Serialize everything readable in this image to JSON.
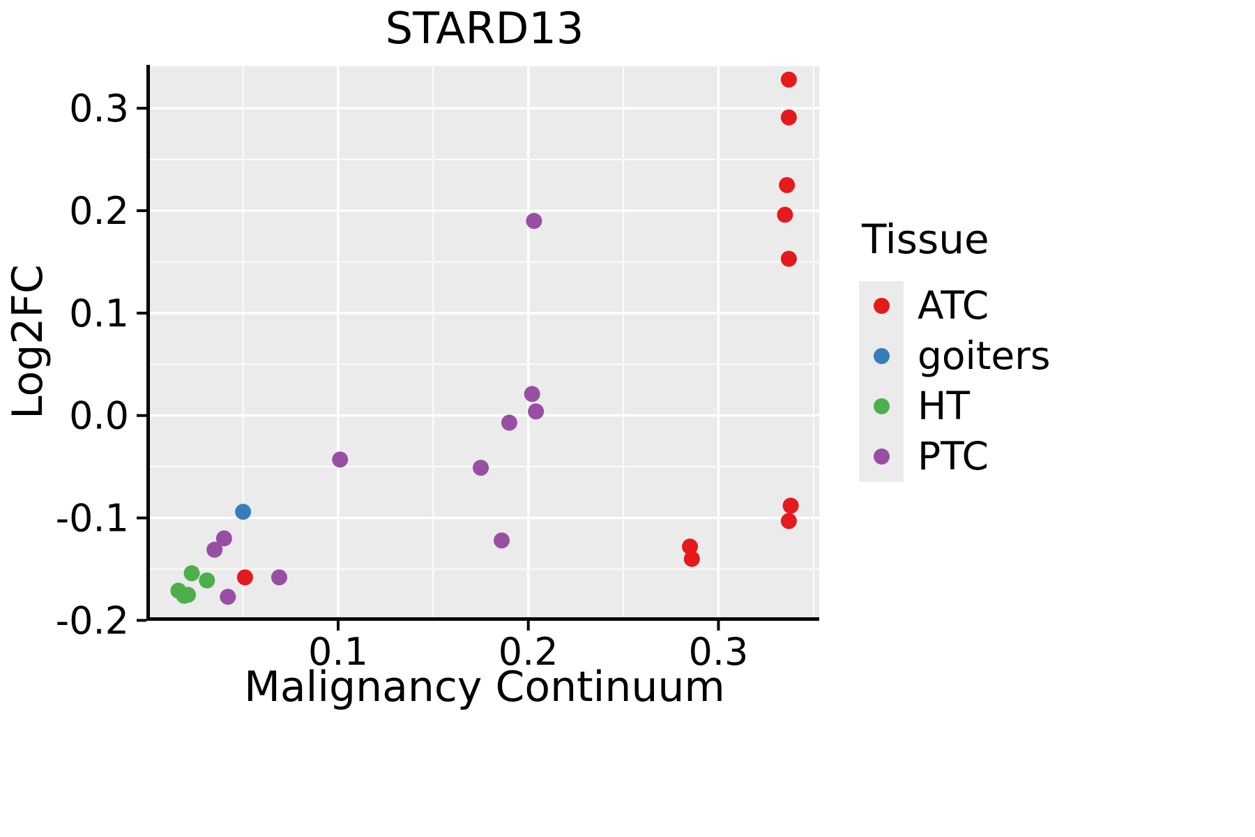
{
  "chart_data": {
    "type": "scatter",
    "title": "STARD13",
    "xlabel": "Malignancy Continuum",
    "ylabel": "Log2FC",
    "xlim": [
      0.001,
      0.353
    ],
    "ylim": [
      -0.197,
      0.341
    ],
    "grid": true,
    "panel_background": "#EBEBEB",
    "grid_color": "#FFFFFF",
    "axis_color": "#000000",
    "x_major_ticks": [
      0.1,
      0.2,
      0.3
    ],
    "x_tick_labels": [
      "0.1",
      "0.2",
      "0.3"
    ],
    "x_minor_ticks": [
      0.05,
      0.15,
      0.25,
      0.35
    ],
    "y_major_ticks": [
      -0.2,
      -0.1,
      0.0,
      0.1,
      0.2,
      0.3
    ],
    "y_tick_labels": [
      "-0.2",
      "-0.1",
      "0.0",
      "0.1",
      "0.2",
      "0.3"
    ],
    "y_minor_ticks": [
      -0.15,
      -0.05,
      0.05,
      0.15,
      0.25
    ],
    "legend_title": "Tissue",
    "legend_position": "right",
    "point_radius": 11.5,
    "series": [
      {
        "name": "ATC",
        "color": "#E41A1C",
        "points": [
          [
            0.337,
            0.328
          ],
          [
            0.337,
            0.291
          ],
          [
            0.336,
            0.225
          ],
          [
            0.335,
            0.196
          ],
          [
            0.337,
            0.153
          ],
          [
            0.338,
            -0.088
          ],
          [
            0.337,
            -0.103
          ],
          [
            0.285,
            -0.128
          ],
          [
            0.286,
            -0.14
          ],
          [
            0.051,
            -0.158
          ]
        ]
      },
      {
        "name": "goiters",
        "color": "#377EB8",
        "points": [
          [
            0.05,
            -0.094
          ]
        ]
      },
      {
        "name": "HT",
        "color": "#4DAF4A",
        "points": [
          [
            0.023,
            -0.154
          ],
          [
            0.031,
            -0.161
          ],
          [
            0.016,
            -0.171
          ],
          [
            0.019,
            -0.176
          ],
          [
            0.021,
            -0.175
          ]
        ]
      },
      {
        "name": "PTC",
        "color": "#984EA3",
        "points": [
          [
            0.203,
            0.19
          ],
          [
            0.202,
            0.021
          ],
          [
            0.204,
            0.004
          ],
          [
            0.19,
            -0.007
          ],
          [
            0.175,
            -0.051
          ],
          [
            0.101,
            -0.043
          ],
          [
            0.186,
            -0.122
          ],
          [
            0.04,
            -0.12
          ],
          [
            0.035,
            -0.131
          ],
          [
            0.042,
            -0.177
          ],
          [
            0.069,
            -0.158
          ]
        ]
      }
    ]
  }
}
